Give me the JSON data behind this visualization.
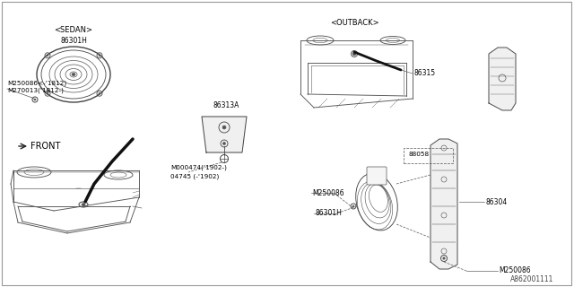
{
  "part_number": "A862001111",
  "background_color": "#ffffff",
  "line_color": "#404040",
  "figsize": [
    6.4,
    3.2
  ],
  "dpi": 100,
  "labels": {
    "front": "FRONT",
    "sedan": "<SEDAN>",
    "outback": "<OUTBACK>",
    "m250086_1812": "M250086<-'1812)",
    "m270013_1812": "M270013('1812-)",
    "86301H_bottom": "86301H",
    "04745": "04745 (-'1902)",
    "M000474": "M000474('1902-)",
    "86313A": "86313A",
    "M250086_top": "M250086",
    "M250086_left": "M250086",
    "86301H_right": "86301H",
    "86304": "86304",
    "88058": "88058",
    "86315": "86315"
  },
  "colors": {
    "car_line": "#555555",
    "leader": "#666666",
    "part_line": "#333333",
    "text": "#000000",
    "thick_arrow": "#000000"
  }
}
